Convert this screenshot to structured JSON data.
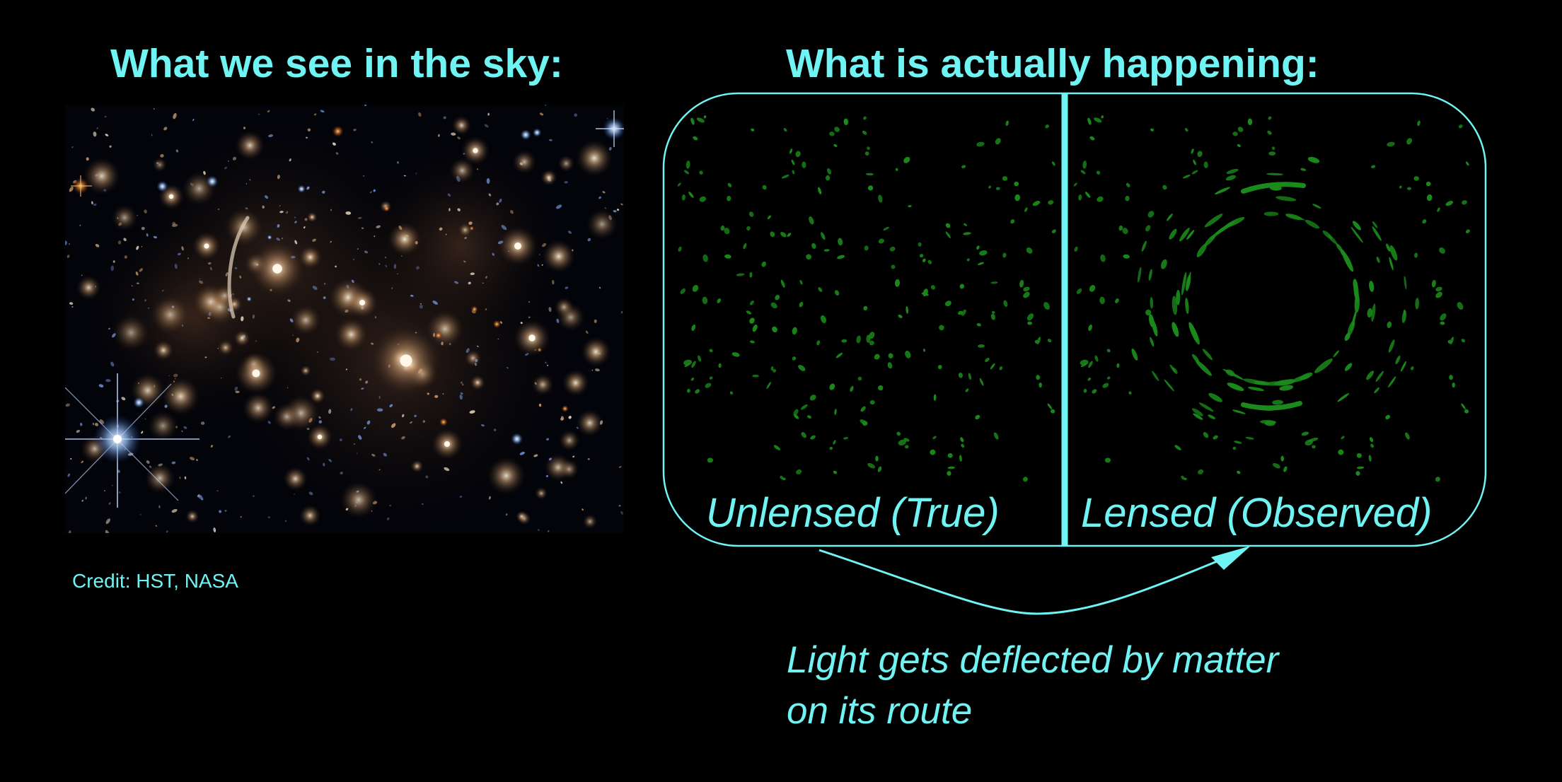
{
  "left_title": "What we see in the sky:",
  "right_title": "What is actually happening:",
  "photo_credit": "Credit: HST, NASA",
  "panels": {
    "unlensed_label": "Unlensed (True)",
    "lensed_label": "Lensed (Observed)"
  },
  "caption": {
    "line1": "Light gets deflected by matter",
    "line2": "on its route"
  },
  "colors": {
    "text_accent": "#6ff3f3",
    "galaxy_green": "#1a8a1a",
    "background": "#000000"
  }
}
